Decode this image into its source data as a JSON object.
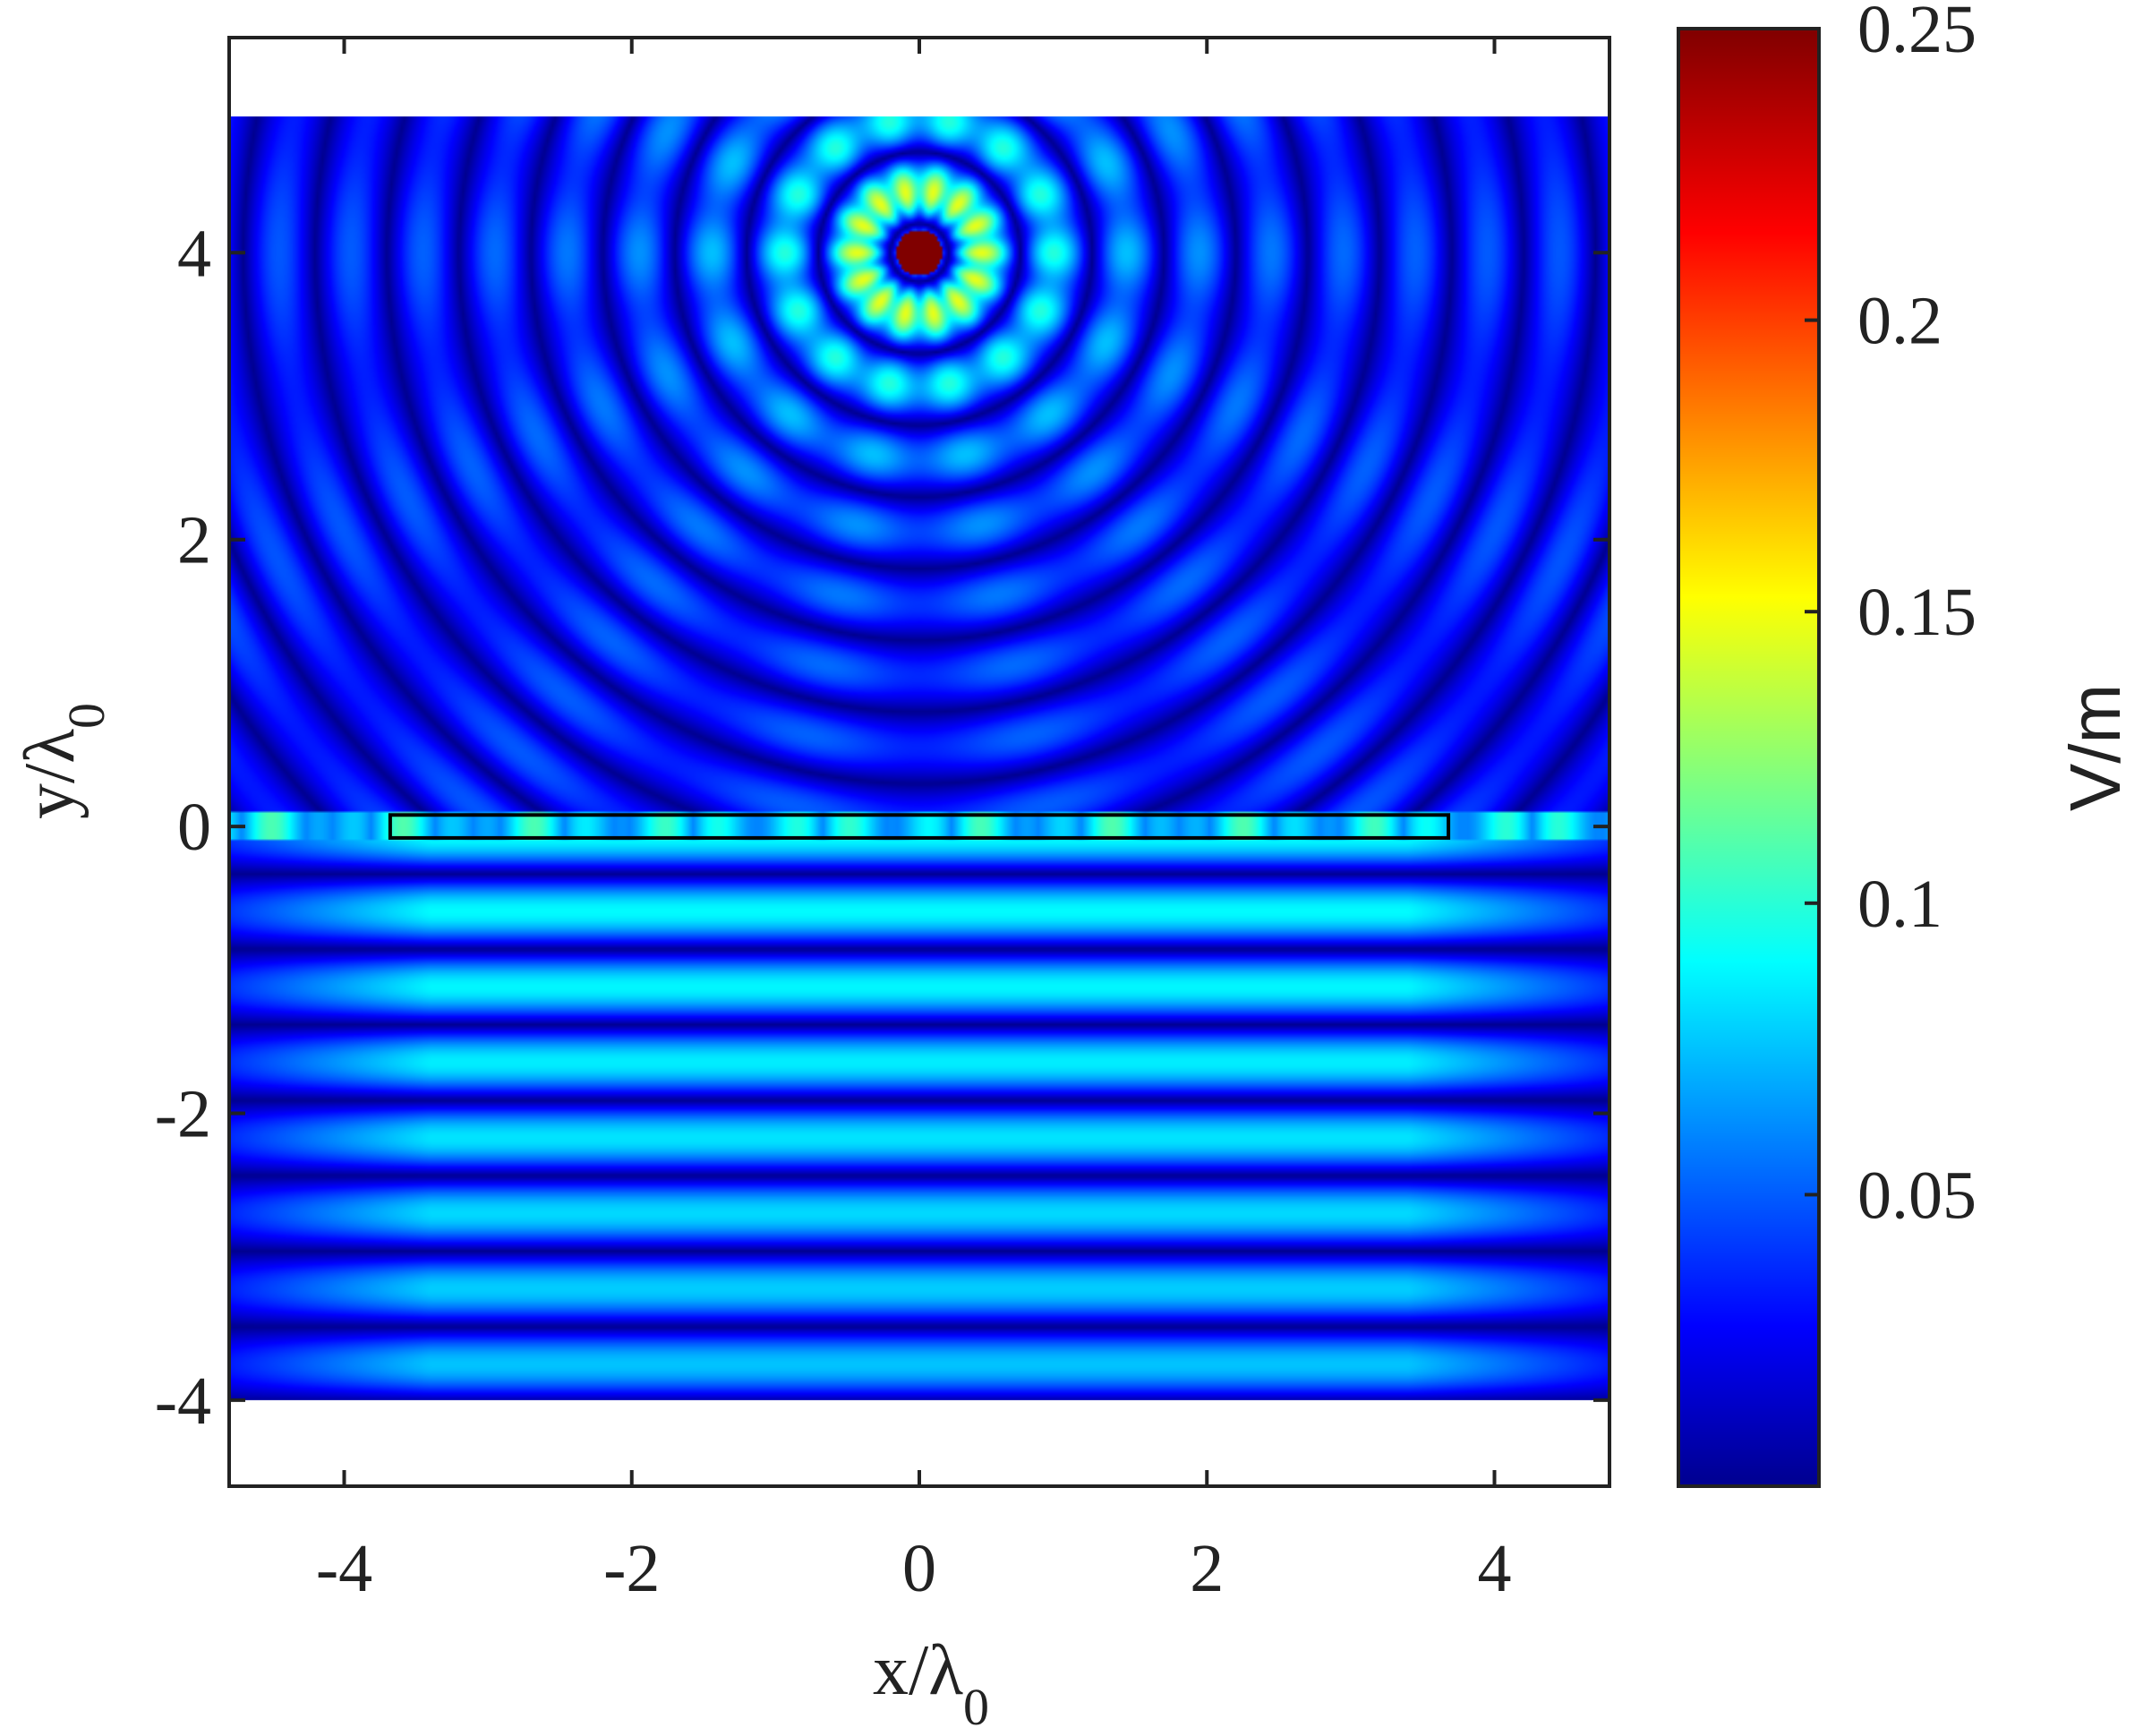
{
  "chart_data": {
    "type": "heatmap",
    "title": "",
    "xlabel": {
      "main": "x/λ",
      "sub": "0"
    },
    "ylabel": {
      "main": "y/λ",
      "sub": "0"
    },
    "xlim": [
      -4.8,
      4.8
    ],
    "ylim": [
      -4.6,
      5.5
    ],
    "field_ylim": [
      -4.0,
      4.95
    ],
    "xticks": [
      -4,
      -2,
      0,
      2,
      4
    ],
    "xtick_labels": [
      "-4",
      "-2",
      "0",
      "2",
      "4"
    ],
    "yticks": [
      -4,
      -2,
      0,
      2,
      4
    ],
    "ytick_labels": [
      "-4",
      "-2",
      "0",
      "2",
      "4"
    ],
    "colorbar": {
      "label": "V/m",
      "range": [
        0.0,
        0.25
      ],
      "ticks": [
        0.05,
        0.1,
        0.15,
        0.2,
        0.25
      ],
      "tick_labels": [
        "0.05",
        "0.1",
        "0.15",
        "0.2",
        "0.25"
      ],
      "colormap": "jet"
    },
    "source": {
      "x": 0.0,
      "y": 4.0
    },
    "slab": {
      "x_range": [
        -3.68,
        3.68
      ],
      "y_range": [
        -0.08,
        0.08
      ]
    },
    "grid": false,
    "colors": {
      "axis": "#222222",
      "slab_outline": "#000000",
      "source_core": "#800000"
    }
  }
}
